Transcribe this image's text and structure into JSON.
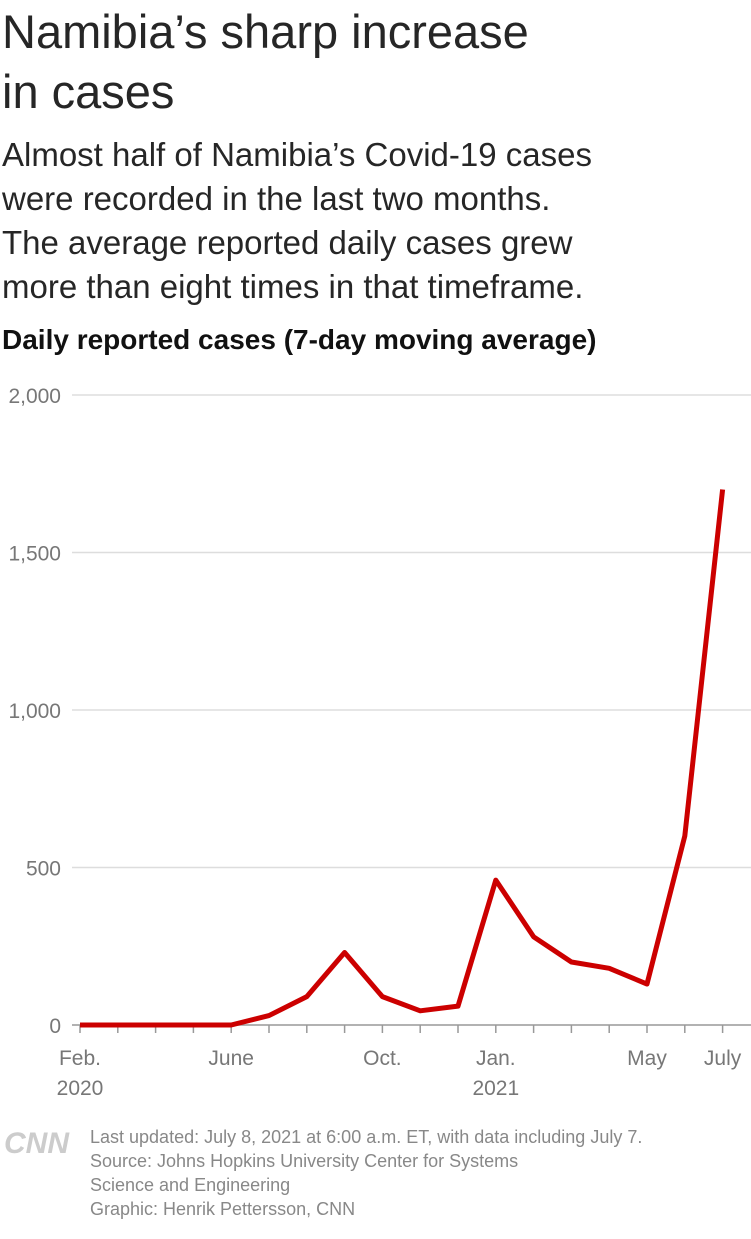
{
  "chart_data": {
    "type": "line",
    "title_lines": [
      "Namibia’s sharp increase",
      "in cases"
    ],
    "subtitle_lines": [
      "Almost half of Namibia’s Covid-19 cases",
      "were recorded in the last two months.",
      "The average reported daily cases grew",
      "more than eight times in that timeframe."
    ],
    "y_label": "Daily reported cases (7-day moving average)",
    "x": [
      "2020-02",
      "2020-03",
      "2020-04",
      "2020-05",
      "2020-06",
      "2020-07",
      "2020-08",
      "2020-09",
      "2020-10",
      "2020-11",
      "2020-12",
      "2021-01",
      "2021-02",
      "2021-03",
      "2021-04",
      "2021-05",
      "2021-06",
      "2021-07"
    ],
    "series": [
      {
        "name": "Daily reported cases",
        "color": "#cc0000",
        "values": [
          0,
          0,
          0,
          0,
          0,
          30,
          90,
          230,
          90,
          45,
          60,
          460,
          280,
          200,
          180,
          130,
          600,
          1700
        ]
      }
    ],
    "ylim": [
      0,
      2000
    ],
    "yticks": [
      0,
      500,
      {
        "value": 1000,
        "label": "1,000"
      },
      {
        "value": 1500,
        "label": "1,500"
      },
      {
        "value": 2000,
        "label": "2,000"
      }
    ],
    "xticks": [
      {
        "value": "2020-02",
        "label": "Feb."
      },
      {
        "value": "2020-06",
        "label": "June"
      },
      {
        "value": "2020-10",
        "label": "Oct."
      },
      {
        "value": "2021-01",
        "label": "Jan."
      },
      {
        "value": "2021-05",
        "label": "May"
      },
      {
        "value": "2021-07",
        "label": "July"
      }
    ],
    "year_labels": [
      {
        "value": "2020-02",
        "label": "2020"
      },
      {
        "value": "2021-01",
        "label": "2021"
      }
    ],
    "grid": true
  },
  "footer": {
    "logo": "CNN",
    "lines": [
      "Last updated: July 8, 2021 at 6:00 a.m. ET, with data including July 7.",
      "Source: Johns Hopkins University Center for Systems",
      "Science and Engineering",
      "Graphic: Henrik Pettersson, CNN"
    ]
  }
}
